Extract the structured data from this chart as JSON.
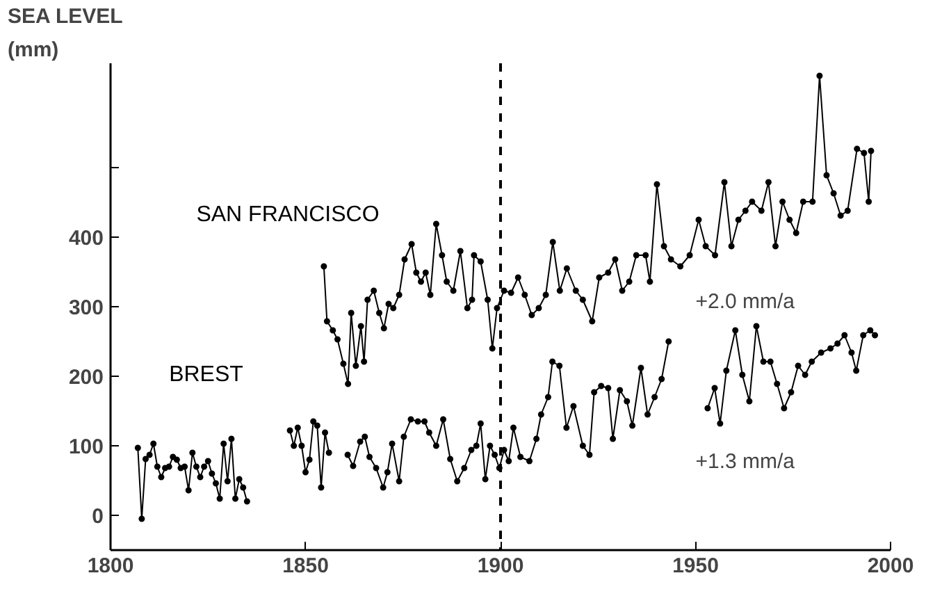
{
  "chart_data": {
    "type": "line",
    "ylabel": "SEA LEVEL\n(mm)",
    "xlim": [
      1800,
      2000
    ],
    "xticks": [
      1800,
      1850,
      1900,
      1950,
      2000
    ],
    "ylim": [
      -50,
      650
    ],
    "yticks": [
      0,
      100,
      200,
      300,
      400,
      {
        "value": 500,
        "label": null
      }
    ],
    "grid": false,
    "marker": "circle",
    "line_style": "solid",
    "series": [
      {
        "name": "SAN FRANCISCO",
        "color": "#000000",
        "x": [
          1854.7,
          1855.5,
          1857,
          1858.2,
          1859.7,
          1860.9,
          1861.7,
          1862.9,
          1864.2,
          1865,
          1865.9,
          1867.5,
          1868.9,
          1870.1,
          1871.3,
          1872.5,
          1874,
          1875.4,
          1877.2,
          1878.4,
          1879.6,
          1880.8,
          1882,
          1883.5,
          1885,
          1886.2,
          1887.9,
          1889.7,
          1891.5,
          1892.7,
          1893.2,
          1894.9,
          1896.7,
          1897.9,
          1899.1,
          1900.9,
          1902.7,
          1904.5,
          1906.2,
          1908,
          1909.8,
          1911.6,
          1913.4,
          1915.2,
          1917,
          1919.3,
          1921.1,
          1923.5,
          1925.3,
          1927.6,
          1929.4,
          1931.2,
          1933,
          1934.8,
          1937.2,
          1938.3,
          1940.1,
          1941.9,
          1943.7,
          1946.1,
          1948.5,
          1950.8,
          1952.6,
          1955,
          1957.4,
          1959.2,
          1961,
          1962.8,
          1964.5,
          1966.9,
          1968.7,
          1970.5,
          1972.3,
          1974.1,
          1975.8,
          1977.6,
          1980,
          1981.8,
          1983.6,
          1985.4,
          1987.2,
          1989,
          1991.4,
          1993.2,
          1994.4,
          1995
        ],
        "values": [
          358,
          279,
          266,
          253,
          218,
          189,
          291,
          215,
          272,
          221,
          310,
          323,
          291,
          269,
          304,
          298,
          317,
          368,
          390,
          349,
          336,
          349,
          317,
          419,
          374,
          336,
          323,
          380,
          298,
          310,
          374,
          365,
          310,
          240,
          298,
          323,
          320,
          342,
          317,
          288,
          298,
          317,
          393,
          323,
          355,
          323,
          310,
          279,
          342,
          349,
          368,
          323,
          336,
          374,
          374,
          336,
          476,
          387,
          368,
          358,
          374,
          425,
          387,
          374,
          479,
          387,
          425,
          438,
          451,
          438,
          479,
          387,
          451,
          425,
          406,
          451,
          451,
          632,
          489,
          463,
          431,
          438,
          527,
          521,
          451,
          524
        ]
      },
      {
        "name": "BREST",
        "color": "#000000",
        "x": [
          1807,
          1808,
          1809,
          1810,
          1811,
          1812,
          1813,
          1814,
          1815,
          1816,
          1817,
          1818,
          1819,
          1820,
          1821,
          1822,
          1823,
          1824,
          1825,
          1826,
          1827,
          1828,
          1829,
          1830,
          1831,
          1832,
          1833,
          1834,
          1835,
          1840,
          1846,
          1847,
          1848,
          1849,
          1850,
          1851,
          1852,
          1853,
          1854,
          1855,
          1856,
          1858,
          1860.8,
          1862.2,
          1864,
          1865.2,
          1866.4,
          1868.1,
          1869.9,
          1871,
          1872.2,
          1874,
          1875.2,
          1877,
          1878.8,
          1880.5,
          1881.7,
          1883.5,
          1885.3,
          1887.1,
          1888.9,
          1890.7,
          1892.5,
          1893.8,
          1894.9,
          1896.1,
          1897.3,
          1898.5,
          1899.7,
          1900.9,
          1902.1,
          1903.3,
          1905.1,
          1907.4,
          1909.2,
          1910.4,
          1912.2,
          1913.3,
          1915.1,
          1916.9,
          1918.7,
          1921.1,
          1922.8,
          1924,
          1925.8,
          1927.6,
          1928.8,
          1930.6,
          1932.4,
          1933.8,
          1936,
          1937.7,
          1939.5,
          1941.3,
          1943.1,
          1948,
          1953.1,
          1954.9,
          1956.3,
          1957.9,
          1960.2,
          1962,
          1963.8,
          1965.6,
          1967.4,
          1969.2,
          1970.9,
          1972.7,
          1974.5,
          1976.3,
          1978.1,
          1979.8,
          1982.2,
          1984.6,
          1986.4,
          1988.2,
          1990,
          1991.2,
          1993,
          1994.8,
          1996
        ],
        "values": [
          97,
          -5,
          81,
          87,
          103,
          70,
          55,
          68,
          70,
          84,
          80,
          68,
          70,
          36,
          90,
          70,
          55,
          70,
          78,
          60,
          46,
          24,
          103,
          49,
          110,
          24,
          52,
          40,
          20,
          null,
          122,
          100,
          126,
          100,
          62,
          80,
          135,
          129,
          40,
          119,
          90,
          null,
          87,
          71,
          106,
          113,
          84,
          68,
          40,
          62,
          103,
          49,
          113,
          138,
          135,
          135,
          119,
          100,
          138,
          81,
          49,
          68,
          94,
          100,
          132,
          52,
          100,
          87,
          68,
          94,
          78,
          126,
          84,
          78,
          110,
          145,
          170,
          221,
          215,
          126,
          157,
          100,
          87,
          177,
          186,
          183,
          110,
          180,
          164,
          129,
          212,
          145,
          170,
          196,
          250,
          null,
          154,
          183,
          132,
          208,
          266,
          202,
          164,
          272,
          221,
          221,
          189,
          154,
          177,
          215,
          202,
          221,
          234,
          240,
          247,
          259,
          234,
          208,
          259,
          266,
          259
        ]
      }
    ],
    "ref_lines": [
      {
        "axis": "x",
        "value": 1900,
        "color": "#000000",
        "line_style": "dashed"
      }
    ],
    "annotations": [
      "+2.0 mm/a",
      "+1.3 mm/a"
    ]
  }
}
